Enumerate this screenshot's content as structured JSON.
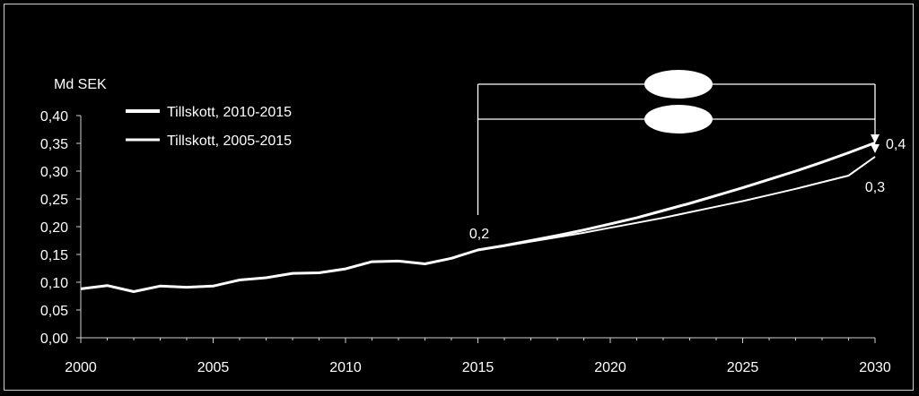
{
  "chart_data": {
    "type": "line",
    "ylabel": "Md SEK",
    "ylim": [
      0,
      0.4
    ],
    "yticks": [
      "0,00",
      "0,05",
      "0,10",
      "0,15",
      "0,20",
      "0,25",
      "0,30",
      "0,35",
      "0,40"
    ],
    "xlim": [
      2000,
      2030
    ],
    "xticks": [
      "2000",
      "2005",
      "2010",
      "2015",
      "2020",
      "2025",
      "2030"
    ],
    "legend_position": "top-left",
    "series": [
      {
        "name": "Tillskott, 2010-2015",
        "x": [
          2000,
          2001,
          2002,
          2003,
          2004,
          2005,
          2006,
          2007,
          2008,
          2009,
          2010,
          2011,
          2012,
          2013,
          2014,
          2015,
          2016,
          2017,
          2018,
          2019,
          2020,
          2021,
          2022,
          2023,
          2024,
          2025,
          2026,
          2027,
          2028,
          2029,
          2030
        ],
        "values": [
          0.088,
          0.094,
          0.083,
          0.093,
          0.091,
          0.093,
          0.104,
          0.108,
          0.116,
          0.117,
          0.124,
          0.137,
          0.138,
          0.133,
          0.143,
          0.158,
          0.166,
          0.175,
          0.184,
          0.194,
          0.205,
          0.216,
          0.229,
          0.242,
          0.256,
          0.27,
          0.285,
          0.3,
          0.316,
          0.333,
          0.351
        ]
      },
      {
        "name": "Tillskott, 2005-2015",
        "x": [
          2000,
          2001,
          2002,
          2003,
          2004,
          2005,
          2006,
          2007,
          2008,
          2009,
          2010,
          2011,
          2012,
          2013,
          2014,
          2015,
          2016,
          2017,
          2018,
          2019,
          2020,
          2021,
          2022,
          2023,
          2024,
          2025,
          2026,
          2027,
          2028,
          2029,
          2030
        ],
        "values": [
          0.088,
          0.094,
          0.083,
          0.093,
          0.091,
          0.093,
          0.104,
          0.108,
          0.116,
          0.117,
          0.124,
          0.137,
          0.138,
          0.133,
          0.143,
          0.158,
          0.165,
          0.173,
          0.181,
          0.189,
          0.198,
          0.207,
          0.216,
          0.226,
          0.236,
          0.246,
          0.257,
          0.268,
          0.28,
          0.292,
          0.326
        ]
      }
    ],
    "annotations": [
      {
        "text": "0,2",
        "x": 2015
      },
      {
        "text": "0,4",
        "x": 2030
      },
      {
        "text": "0,3",
        "x": 2030
      }
    ]
  }
}
